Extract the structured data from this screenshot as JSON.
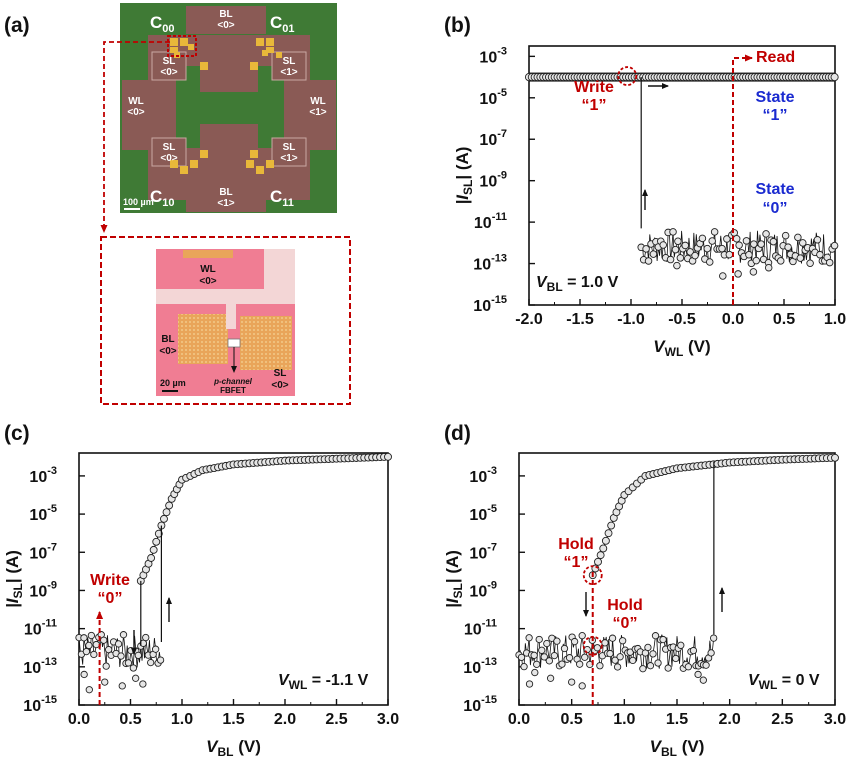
{
  "panel_labels": {
    "a": "(a)",
    "b": "(b)",
    "c": "(c)",
    "d": "(d)"
  },
  "colors": {
    "annotation_red": "#c00000",
    "state_blue": "#1a2ad0",
    "chip_green": "#3f7a35",
    "chip_copper": "#8a5a55",
    "pad_gold": "#e8b83a",
    "cell_pink": "#f07d93",
    "frame_red": "#b80000"
  },
  "micrograph": {
    "cells": {
      "c00": "C",
      "c00_sub": "00",
      "c01": "C",
      "c01_sub": "01",
      "c10": "C",
      "c10_sub": "10",
      "c11": "C",
      "c11_sub": "11"
    },
    "bl0": "BL",
    "bl0_idx": "<0>",
    "bl1": "BL",
    "bl1_idx": "<1>",
    "sl_tl": "SL",
    "sl_tl_idx": "<0>",
    "sl_tr": "SL",
    "sl_tr_idx": "<1>",
    "sl_bl": "SL",
    "sl_bl_idx": "<0>",
    "sl_br": "SL",
    "sl_br_idx": "<1>",
    "wl0": "WL",
    "wl0_idx": "<0>",
    "wl1": "WL",
    "wl1_idx": "<1>",
    "scale": "100 µm"
  },
  "zoom": {
    "wl": "WL",
    "wl_idx": "<0>",
    "bl": "BL",
    "bl_idx": "<0>",
    "sl": "SL",
    "sl_idx": "<0>",
    "scale": "20 µm",
    "device_l1": "p-channel",
    "device_l2": "FBFET"
  },
  "chart_data": [
    {
      "panel": "b",
      "type": "scatter",
      "xlabel_main": "V",
      "xlabel_sub": "WL",
      "xlabel_unit": " (V)",
      "ylabel_pre": "|I",
      "ylabel_sub": "SL",
      "ylabel_post": "| (A)",
      "xlim": [
        -2.0,
        1.0
      ],
      "ylim_log10": [
        -15,
        -2.5
      ],
      "xticks": [
        "-2.0",
        "-1.5",
        "-1.0",
        "-0.5",
        "0.0",
        "0.5",
        "1.0"
      ],
      "yticks": [
        "10",
        "10",
        "10",
        "10",
        "10",
        "10",
        "10"
      ],
      "ytick_exp": [
        "-15",
        "-13",
        "-11",
        "-9",
        "-7",
        "-5",
        "-3"
      ],
      "series": [
        {
          "x_range": [
            -2.0,
            1.0
          ],
          "log10_I": -4.0
        },
        {
          "x_range": [
            -0.9,
            1.0
          ],
          "log10_I_mean": -12.2,
          "log10_I_spread": 0.8
        }
      ],
      "transition_x": -0.9,
      "annotations": {
        "write": "Write",
        "write_val": "“1”",
        "read": "Read",
        "state1": "State",
        "state1_val": "“1”",
        "state0": "State",
        "state0_val": "“0”",
        "cond_main": "V",
        "cond_sub": "BL",
        "cond_val": " = 1.0 V"
      }
    },
    {
      "panel": "c",
      "type": "scatter",
      "xlabel_main": "V",
      "xlabel_sub": "BL",
      "xlabel_unit": " (V)",
      "ylabel_pre": "|I",
      "ylabel_sub": "SL",
      "ylabel_post": "| (A)",
      "xlim": [
        0.0,
        3.0
      ],
      "ylim_log10": [
        -15,
        -1.8
      ],
      "xticks": [
        "0.0",
        "0.5",
        "1.0",
        "1.5",
        "2.0",
        "2.5",
        "3.0"
      ],
      "yticks": [
        "10",
        "10",
        "10",
        "10",
        "10",
        "10",
        "10"
      ],
      "ytick_exp": [
        "-15",
        "-13",
        "-11",
        "-9",
        "-7",
        "-5",
        "-3"
      ],
      "series": [
        {
          "curve": "forward",
          "x_on": 0.8,
          "x_off": 0.6
        },
        {
          "curve": "on_state",
          "points": [
            [
              0.6,
              -8.5
            ],
            [
              0.7,
              -7.3
            ],
            [
              0.8,
              -5.6
            ],
            [
              0.9,
              -4.2
            ],
            [
              1.0,
              -3.2
            ],
            [
              1.2,
              -2.7
            ],
            [
              1.5,
              -2.4
            ],
            [
              2.0,
              -2.2
            ],
            [
              2.5,
              -2.1
            ],
            [
              3.0,
              -2.0
            ]
          ]
        }
      ],
      "annotations": {
        "write": "Write",
        "write_val": "“0”",
        "write_x": 0.2,
        "cond_main": "V",
        "cond_sub": "WL",
        "cond_val": " = -1.1 V"
      }
    },
    {
      "panel": "d",
      "type": "scatter",
      "xlabel_main": "V",
      "xlabel_sub": "BL",
      "xlabel_unit": " (V)",
      "ylabel_pre": "|I",
      "ylabel_sub": "SL",
      "ylabel_post": "| (A)",
      "xlim": [
        0.0,
        3.0
      ],
      "ylim_log10": [
        -15,
        -1.8
      ],
      "xticks": [
        "0.0",
        "0.5",
        "1.0",
        "1.5",
        "2.0",
        "2.5",
        "3.0"
      ],
      "yticks": [
        "10",
        "10",
        "10",
        "10",
        "10",
        "10",
        "10"
      ],
      "ytick_exp": [
        "-15",
        "-13",
        "-11",
        "-9",
        "-7",
        "-5",
        "-3"
      ],
      "series": [
        {
          "curve": "forward",
          "x_on": 1.85
        },
        {
          "curve": "on_state",
          "points": [
            [
              0.7,
              -8.2
            ],
            [
              0.8,
              -6.8
            ],
            [
              0.9,
              -5.2
            ],
            [
              1.0,
              -4.0
            ],
            [
              1.2,
              -3.0
            ],
            [
              1.5,
              -2.6
            ],
            [
              2.0,
              -2.3
            ],
            [
              2.5,
              -2.15
            ],
            [
              3.0,
              -2.05
            ]
          ]
        }
      ],
      "annotations": {
        "hold1": "Hold",
        "hold1_val": "“1”",
        "hold0": "Hold",
        "hold0_val": "“0”",
        "hold_x": 0.7,
        "cond_main": "V",
        "cond_sub": "WL",
        "cond_val": " = 0 V"
      }
    }
  ]
}
